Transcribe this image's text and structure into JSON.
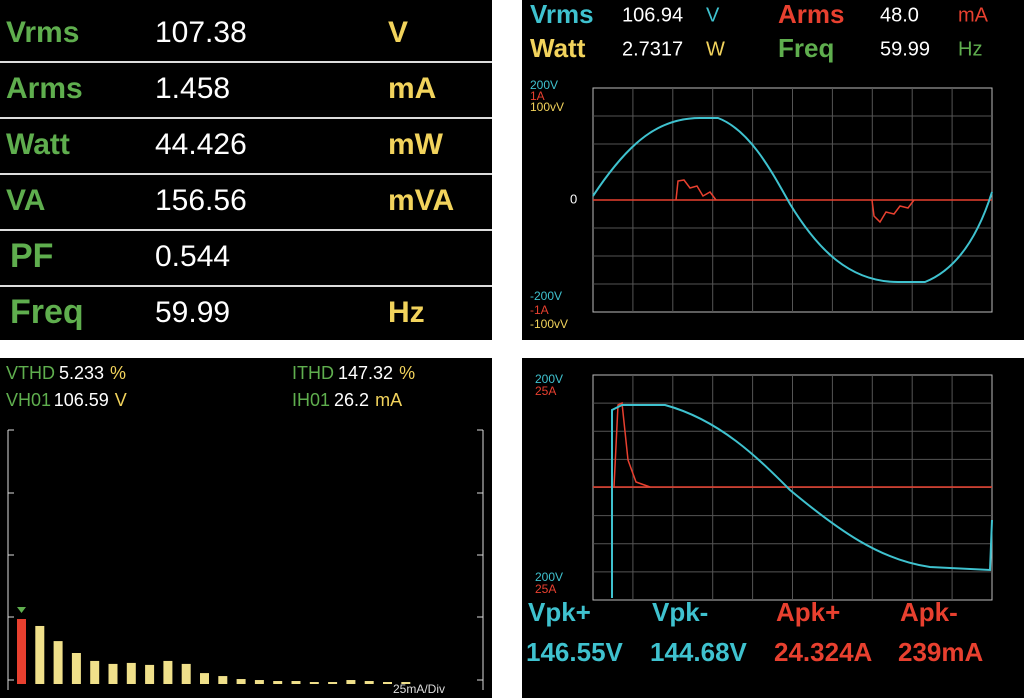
{
  "meter": {
    "rows": [
      {
        "label": "Vrms",
        "value": 107.38,
        "unit": "V"
      },
      {
        "label": "Arms",
        "value": 1.458,
        "unit": "mA"
      },
      {
        "label": "Watt",
        "value": 44.426,
        "unit": "mW"
      },
      {
        "label": "VA",
        "value": 156.56,
        "unit": "mVA"
      },
      {
        "label": "PF",
        "value": 0.544
      },
      {
        "label": "Freq",
        "value": 59.99,
        "unit": "Hz"
      }
    ]
  },
  "scope": {
    "readings": [
      {
        "label": "Vrms",
        "value": 106.94,
        "unit": "V"
      },
      {
        "label": "Arms",
        "value": "48.0",
        "unit": "mA"
      },
      {
        "label": "Watt",
        "value": 2.7317,
        "unit": "W"
      },
      {
        "label": "Freq",
        "value": 59.99,
        "unit": "Hz"
      }
    ],
    "axis": {
      "top": [
        "200V",
        "1A",
        "100vV"
      ],
      "zero": "0",
      "bottom": [
        "-200V",
        "-1A",
        "-100vV"
      ]
    }
  },
  "harmonics": {
    "readings": [
      {
        "label": "VTHD",
        "value": 5.233,
        "unit": "%"
      },
      {
        "label": "ITHD",
        "value": 147.32,
        "unit": "%"
      },
      {
        "label": "VH01",
        "value": 106.59,
        "unit": "V"
      },
      {
        "label": "IH01",
        "value": 26.2,
        "unit": "mA"
      }
    ],
    "scale": "25mA/Div",
    "values": [
      26.2,
      23.4,
      17.3,
      12.5,
      9.3,
      8.1,
      8.5,
      7.7,
      9.3,
      8.1,
      4.4,
      3.2,
      2.0,
      1.6,
      1.2,
      1.2,
      0.8,
      0.8,
      1.6,
      1.2,
      0.8,
      0.8
    ]
  },
  "peak": {
    "axis": {
      "top": [
        "200V",
        "25A"
      ],
      "bottom": [
        "200V",
        "25A"
      ]
    },
    "readings": [
      {
        "label": "Vpk+",
        "value": "146.55V"
      },
      {
        "label": "Vpk-",
        "value": "144.68V"
      },
      {
        "label": "Apk+",
        "value": "24.324A"
      },
      {
        "label": "Apk-",
        "value": "239mA"
      }
    ]
  }
}
